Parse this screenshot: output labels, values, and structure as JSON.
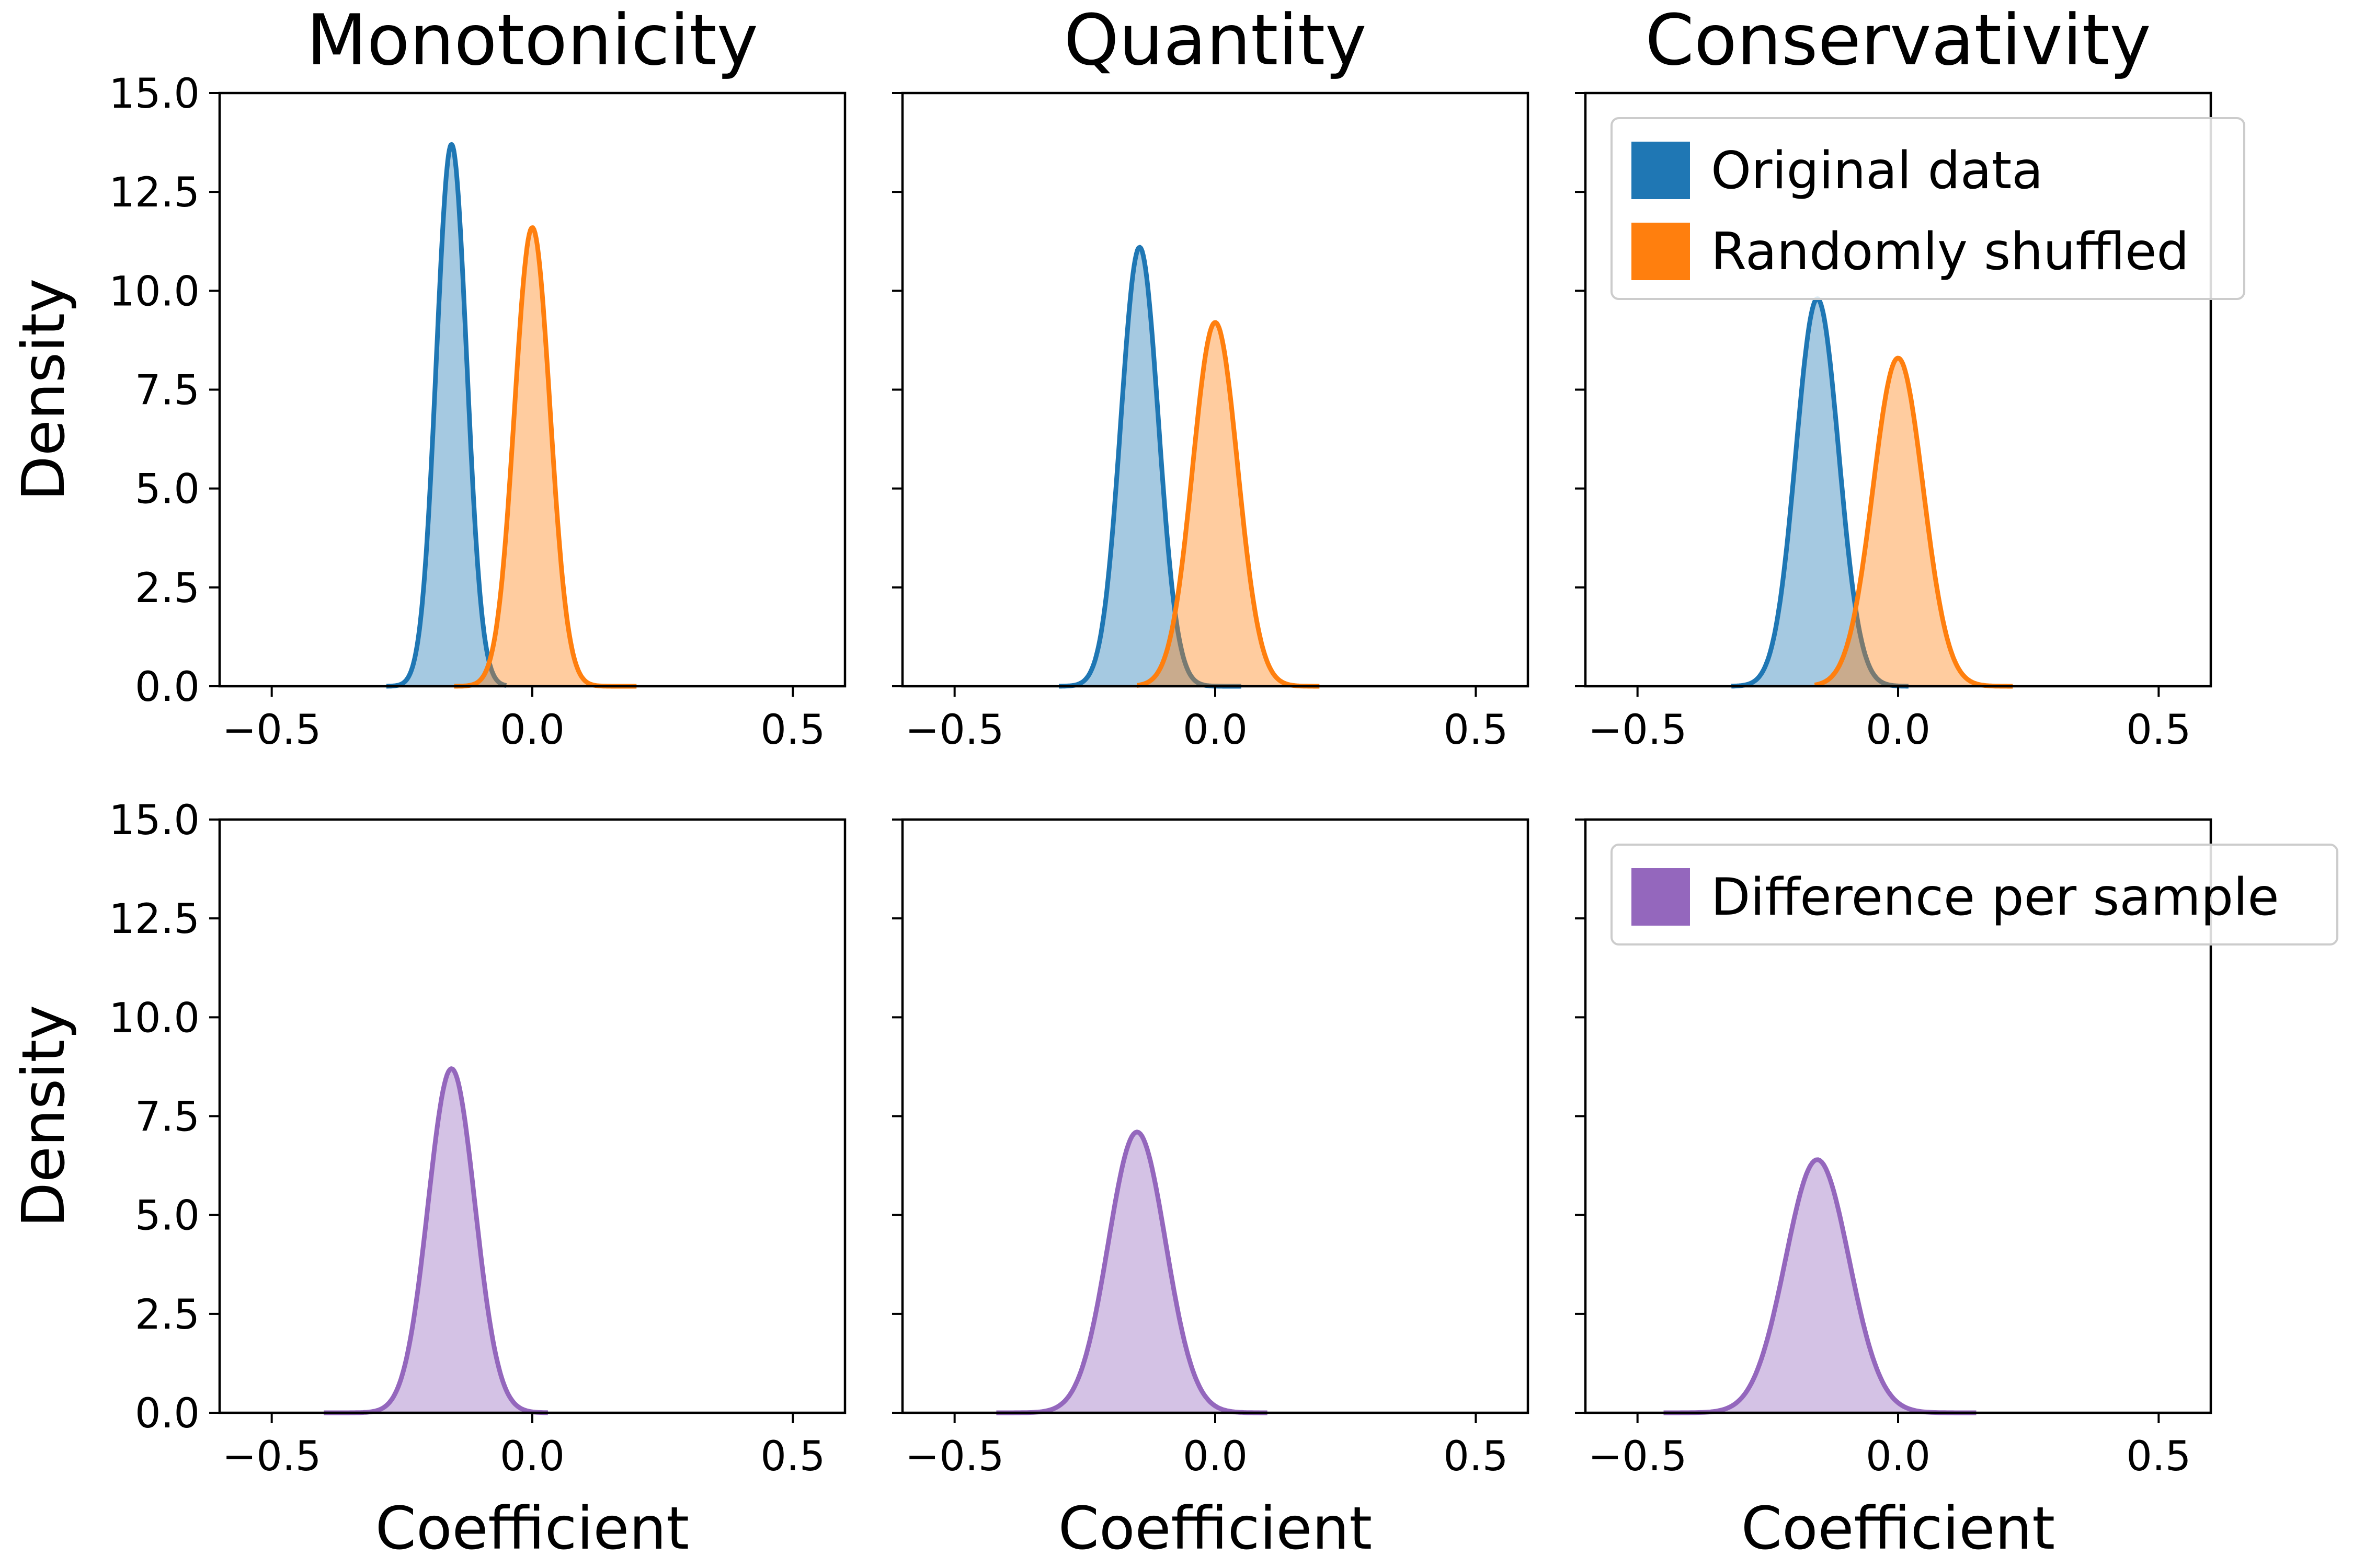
{
  "figure": {
    "x_axis_label": "Coefficient",
    "y_axis_label": "Density",
    "colors": {
      "original": "#1f77b4",
      "shuffled": "#ff7f0e",
      "difference": "#9467bd"
    }
  },
  "legends": {
    "top": [
      {
        "label": "Original data",
        "series_key": "original"
      },
      {
        "label": "Randomly shuffled",
        "series_key": "shuffled"
      }
    ],
    "bottom": [
      {
        "label": "Difference per sample",
        "series_key": "difference"
      }
    ]
  },
  "chart_data": [
    {
      "type": "area",
      "row": 0,
      "col": 0,
      "title": "Monotonicity",
      "xlim": [
        -0.6,
        0.6
      ],
      "ylim": [
        0,
        15
      ],
      "xticks": [
        "−0.5",
        "0.0",
        "0.5"
      ],
      "xtick_values": [
        -0.5,
        0.0,
        0.5
      ],
      "yticks": [
        "0.0",
        "2.5",
        "5.0",
        "7.5",
        "10.0",
        "12.5",
        "15.0"
      ],
      "ytick_values": [
        0,
        2.5,
        5,
        7.5,
        10,
        12.5,
        15
      ],
      "legend": "top-right",
      "grid": false,
      "series": [
        {
          "name": "Original data",
          "key": "original",
          "mean": -0.155,
          "sd": 0.029,
          "peak": 13.7,
          "range": [
            -0.28,
            -0.05
          ]
        },
        {
          "name": "Randomly shuffled",
          "key": "shuffled",
          "mean": 0.0,
          "sd": 0.034,
          "peak": 11.6,
          "range": [
            -0.15,
            0.2
          ]
        }
      ]
    },
    {
      "type": "area",
      "row": 0,
      "col": 1,
      "title": "Quantity",
      "xlim": [
        -0.6,
        0.6
      ],
      "ylim": [
        0,
        15
      ],
      "xticks": [
        "−0.5",
        "0.0",
        "0.5"
      ],
      "xtick_values": [
        -0.5,
        0.0,
        0.5
      ],
      "yticks": [],
      "ytick_values": [
        0,
        2.5,
        5,
        7.5,
        10,
        12.5,
        15
      ],
      "legend": "none",
      "grid": false,
      "series": [
        {
          "name": "Original data",
          "key": "original",
          "mean": -0.145,
          "sd": 0.036,
          "peak": 11.1,
          "range": [
            -0.3,
            0.05
          ]
        },
        {
          "name": "Randomly shuffled",
          "key": "shuffled",
          "mean": 0.0,
          "sd": 0.043,
          "peak": 9.2,
          "range": [
            -0.15,
            0.2
          ]
        }
      ]
    },
    {
      "type": "area",
      "row": 0,
      "col": 2,
      "title": "Conservativity",
      "xlim": [
        -0.6,
        0.6
      ],
      "ylim": [
        0,
        15
      ],
      "xticks": [
        "−0.5",
        "0.0",
        "0.5"
      ],
      "xtick_values": [
        -0.5,
        0.0,
        0.5
      ],
      "yticks": [],
      "ytick_values": [
        0,
        2.5,
        5,
        7.5,
        10,
        12.5,
        15
      ],
      "legend": "top-right",
      "grid": false,
      "series": [
        {
          "name": "Original data",
          "key": "original",
          "mean": -0.155,
          "sd": 0.041,
          "peak": 9.8,
          "range": [
            -0.32,
            0.02
          ]
        },
        {
          "name": "Randomly shuffled",
          "key": "shuffled",
          "mean": 0.0,
          "sd": 0.048,
          "peak": 8.3,
          "range": [
            -0.16,
            0.22
          ]
        }
      ]
    },
    {
      "type": "area",
      "row": 1,
      "col": 0,
      "title": "",
      "xlim": [
        -0.6,
        0.6
      ],
      "ylim": [
        0,
        15
      ],
      "xticks": [
        "−0.5",
        "0.0",
        "0.5"
      ],
      "xtick_values": [
        -0.5,
        0.0,
        0.5
      ],
      "yticks": [
        "0.0",
        "2.5",
        "5.0",
        "7.5",
        "10.0",
        "12.5",
        "15.0"
      ],
      "ytick_values": [
        0,
        2.5,
        5,
        7.5,
        10,
        12.5,
        15
      ],
      "legend": "none",
      "grid": false,
      "series": [
        {
          "name": "Difference per sample",
          "key": "difference",
          "mean": -0.155,
          "sd": 0.045,
          "peak": 8.7,
          "range": [
            -0.4,
            0.03
          ]
        }
      ]
    },
    {
      "type": "area",
      "row": 1,
      "col": 1,
      "title": "",
      "xlim": [
        -0.6,
        0.6
      ],
      "ylim": [
        0,
        15
      ],
      "xticks": [
        "−0.5",
        "0.0",
        "0.5"
      ],
      "xtick_values": [
        -0.5,
        0.0,
        0.5
      ],
      "yticks": [],
      "ytick_values": [
        0,
        2.5,
        5,
        7.5,
        10,
        12.5,
        15
      ],
      "legend": "none",
      "grid": false,
      "series": [
        {
          "name": "Difference per sample",
          "key": "difference",
          "mean": -0.15,
          "sd": 0.055,
          "peak": 7.1,
          "range": [
            -0.42,
            0.1
          ]
        }
      ]
    },
    {
      "type": "area",
      "row": 1,
      "col": 2,
      "title": "",
      "xlim": [
        -0.6,
        0.6
      ],
      "ylim": [
        0,
        15
      ],
      "xticks": [
        "−0.5",
        "0.0",
        "0.5"
      ],
      "xtick_values": [
        -0.5,
        0.0,
        0.5
      ],
      "yticks": [],
      "ytick_values": [
        0,
        2.5,
        5,
        7.5,
        10,
        12.5,
        15
      ],
      "legend": "top-right",
      "grid": false,
      "series": [
        {
          "name": "Difference per sample",
          "key": "difference",
          "mean": -0.155,
          "sd": 0.061,
          "peak": 6.4,
          "range": [
            -0.45,
            0.15
          ]
        }
      ]
    }
  ]
}
